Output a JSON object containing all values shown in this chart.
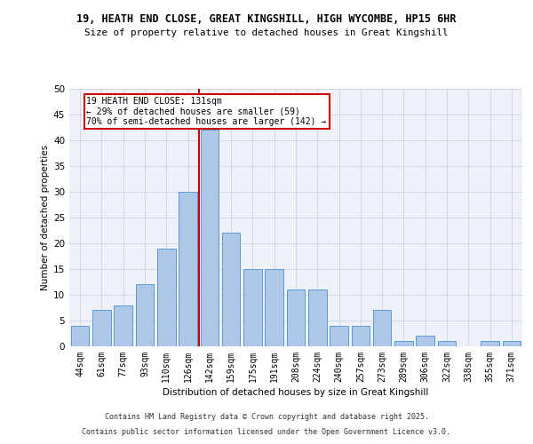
{
  "title_line1": "19, HEATH END CLOSE, GREAT KINGSHILL, HIGH WYCOMBE, HP15 6HR",
  "title_line2": "Size of property relative to detached houses in Great Kingshill",
  "xlabel": "Distribution of detached houses by size in Great Kingshill",
  "ylabel": "Number of detached properties",
  "categories": [
    "44sqm",
    "61sqm",
    "77sqm",
    "93sqm",
    "110sqm",
    "126sqm",
    "142sqm",
    "159sqm",
    "175sqm",
    "191sqm",
    "208sqm",
    "224sqm",
    "240sqm",
    "257sqm",
    "273sqm",
    "289sqm",
    "306sqm",
    "322sqm",
    "338sqm",
    "355sqm",
    "371sqm"
  ],
  "values": [
    4,
    7,
    8,
    12,
    19,
    30,
    42,
    22,
    15,
    15,
    11,
    11,
    4,
    4,
    7,
    1,
    2,
    1,
    0,
    1,
    1
  ],
  "bar_color": "#aec6e8",
  "bar_edge_color": "#5b9bd5",
  "vline_color": "#cc0000",
  "annotation_text": "19 HEATH END CLOSE: 131sqm\n← 29% of detached houses are smaller (59)\n70% of semi-detached houses are larger (142) →",
  "annotation_box_color": "#ffffff",
  "annotation_border_color": "#cc0000",
  "ylim": [
    0,
    50
  ],
  "yticks": [
    0,
    5,
    10,
    15,
    20,
    25,
    30,
    35,
    40,
    45,
    50
  ],
  "grid_color": "#d0d8e8",
  "background_color": "#eef2f8",
  "footer_line1": "Contains HM Land Registry data © Crown copyright and database right 2025.",
  "footer_line2": "Contains public sector information licensed under the Open Government Licence v3.0.",
  "vline_x_index": 5.5
}
